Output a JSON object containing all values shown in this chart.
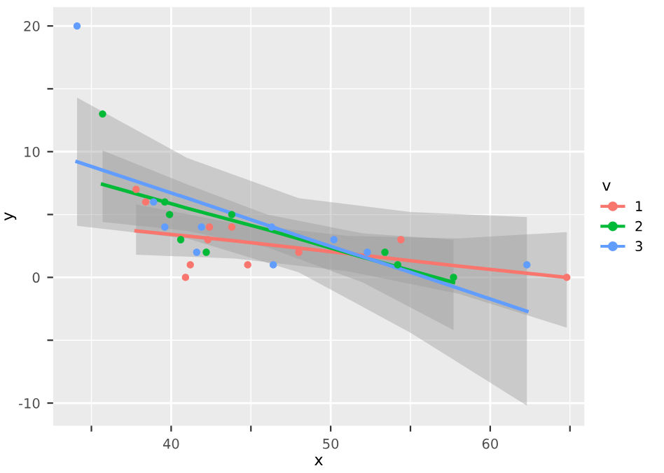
{
  "chart_data": {
    "type": "scatter",
    "xlabel": "x",
    "ylabel": "y",
    "legend_title": "v",
    "legend": "right",
    "grid": true,
    "xlim": [
      32.6,
      65.9
    ],
    "ylim": [
      -11.8,
      21.5
    ],
    "xticks": [
      {
        "value": 35,
        "label": null
      },
      40,
      {
        "value": 45,
        "label": null
      },
      50,
      {
        "value": 55,
        "label": null
      },
      60,
      {
        "value": 65,
        "label": null
      }
    ],
    "yticks": [
      -10,
      {
        "value": -5,
        "label": null
      },
      0,
      {
        "value": 5,
        "label": null
      },
      10,
      {
        "value": 15,
        "label": null
      },
      20
    ],
    "series": [
      {
        "type": "line",
        "color": "#f8766d",
        "x": [
          37.8,
          44,
          51,
          58,
          64.8
        ],
        "marker": "none",
        "values": [
          3.7,
          2.9,
          1.9,
          0.9,
          0
        ],
        "lower": [
          1.8,
          1.5,
          0.5,
          -1.3,
          -4.0
        ],
        "upper": [
          5.8,
          4.3,
          3.3,
          3.1,
          3.6
        ]
      },
      {
        "type": "line",
        "color": "#00ba38",
        "x": [
          35.7,
          41,
          46,
          52,
          57.7
        ],
        "marker": "none",
        "values": [
          7.4,
          5.5,
          3.8,
          1.6,
          -0.4
        ],
        "lower": [
          4.4,
          3.7,
          2.4,
          -0.4,
          -4.2
        ],
        "upper": [
          10.1,
          7.4,
          5.0,
          3.5,
          3.0
        ]
      },
      {
        "type": "line",
        "color": "#619cff",
        "x": [
          34.1,
          41,
          48,
          55,
          62.3
        ],
        "marker": "none",
        "values": [
          9.2,
          6.3,
          3.3,
          0.4,
          -2.7
        ],
        "lower": [
          4.1,
          3.1,
          0.4,
          -4.4,
          -10.2
        ],
        "upper": [
          14.3,
          9.5,
          6.3,
          5.2,
          4.8
        ]
      },
      {
        "name": "1",
        "color": "#f8766d",
        "marker": "circle",
        "x": [
          37.8,
          38.4,
          40.9,
          41.2,
          42.3,
          42.4,
          43.8,
          44.8,
          48.0,
          54.4,
          64.8
        ],
        "values": [
          7,
          6,
          0,
          1,
          3,
          4,
          4,
          1,
          2,
          3,
          0
        ]
      },
      {
        "name": "2",
        "color": "#00ba38",
        "marker": "circle",
        "x": [
          35.7,
          39.6,
          39.9,
          40.6,
          42.2,
          43.8,
          53.4,
          54.2,
          57.7
        ],
        "values": [
          13,
          6,
          5,
          3,
          2,
          5,
          2,
          1,
          0
        ]
      },
      {
        "name": "3",
        "color": "#619cff",
        "marker": "circle",
        "x": [
          34.1,
          38.9,
          39.6,
          41.6,
          41.9,
          46.3,
          46.4,
          50.2,
          52.3,
          62.3
        ],
        "values": [
          20,
          6,
          4,
          2,
          4,
          4,
          1,
          3,
          2,
          1
        ]
      }
    ]
  }
}
